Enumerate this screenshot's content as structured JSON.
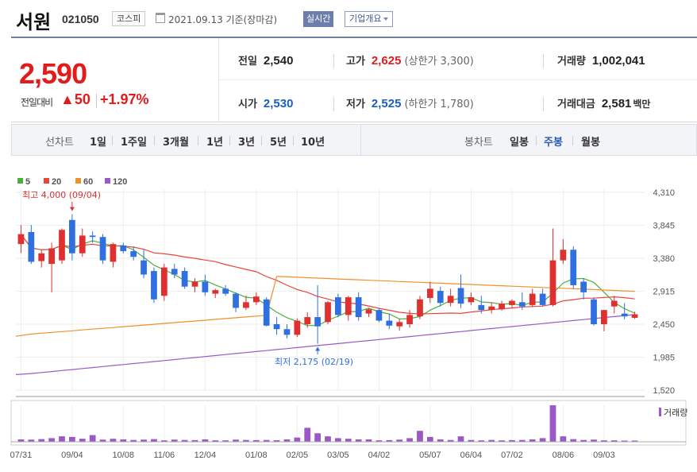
{
  "header": {
    "name": "서원",
    "code": "021050",
    "market": "코스피",
    "date": "2021.09.13 기준(장마감)",
    "realtime": "실시간",
    "company": "기업개요"
  },
  "quote": {
    "price": "2,590",
    "compare_label": "전일대비",
    "compare_value": "▲50",
    "rate": "+1.97%",
    "prev_label": "전일",
    "prev_value": "2,540",
    "high_label": "고가",
    "high_value": "2,625",
    "upper_limit": "(상한가 3,300)",
    "volume_label": "거래량",
    "volume_value": "1,002,041",
    "open_label": "시가",
    "open_value": "2,530",
    "low_label": "저가",
    "low_value": "2,525",
    "lower_limit": "(하한가 1,780)",
    "amount_label": "거래대금",
    "amount_value": "2,581",
    "amount_unit": "백만"
  },
  "period_bar": {
    "line_label": "선차트",
    "line_options": [
      "1일",
      "1주일",
      "3개월",
      "1년",
      "3년",
      "5년",
      "10년"
    ],
    "candle_label": "봉차트",
    "candle_options": [
      "일봉",
      "주봉",
      "월봉"
    ],
    "candle_selected": 1
  },
  "chart_data": {
    "type": "candlestick",
    "legend": [
      {
        "name": "5",
        "color": "#4caf3c"
      },
      {
        "name": "20",
        "color": "#e8453c"
      },
      {
        "name": "60",
        "color": "#f0902a"
      },
      {
        "name": "120",
        "color": "#9b59c8"
      }
    ],
    "colors": {
      "up": "#e02f2f",
      "down": "#2f6fe0",
      "grid": "#eeeeee"
    },
    "y_ticks": [
      "4,310",
      "3,845",
      "3,380",
      "2,915",
      "2,450",
      "1,985",
      "1,520"
    ],
    "y_tick_values": [
      4310,
      3845,
      3380,
      2915,
      2450,
      1985,
      1520
    ],
    "ylim": [
      1520,
      4310
    ],
    "x_tick_labels": [
      "07/31",
      "09/04",
      "10/08",
      "11/06",
      "12/04",
      "01/08",
      "02/05",
      "03/05",
      "04/02",
      "05/07",
      "06/04",
      "07/02",
      "08/06",
      "09/03"
    ],
    "x_tick_index": [
      0,
      5,
      10,
      14,
      18,
      23,
      27,
      31,
      35,
      40,
      44,
      48,
      53,
      57
    ],
    "high_annotation": "최고 4,000 (09/04)",
    "high_index": 5,
    "high_value": 4000,
    "low_annotation": "최저 2,175 (02/19)",
    "low_index": 29,
    "low_value": 2175,
    "volume_label": "거래량",
    "candles": [
      {
        "o": 3580,
        "h": 3850,
        "l": 3450,
        "c": 3720
      },
      {
        "o": 3750,
        "h": 3850,
        "l": 3300,
        "c": 3330
      },
      {
        "o": 3340,
        "h": 3500,
        "l": 3250,
        "c": 3450
      },
      {
        "o": 3300,
        "h": 3600,
        "l": 2900,
        "c": 3520
      },
      {
        "o": 3350,
        "h": 3800,
        "l": 3300,
        "c": 3780
      },
      {
        "o": 3920,
        "h": 4000,
        "l": 3350,
        "c": 3450
      },
      {
        "o": 3450,
        "h": 3800,
        "l": 3400,
        "c": 3700
      },
      {
        "o": 3700,
        "h": 3760,
        "l": 3600,
        "c": 3680
      },
      {
        "o": 3680,
        "h": 3720,
        "l": 3300,
        "c": 3350
      },
      {
        "o": 3330,
        "h": 3600,
        "l": 3250,
        "c": 3580
      },
      {
        "o": 3560,
        "h": 3600,
        "l": 3450,
        "c": 3480
      },
      {
        "o": 3480,
        "h": 3550,
        "l": 3350,
        "c": 3400
      },
      {
        "o": 3350,
        "h": 3500,
        "l": 3100,
        "c": 3150
      },
      {
        "o": 3200,
        "h": 3250,
        "l": 2750,
        "c": 2800
      },
      {
        "o": 2850,
        "h": 3300,
        "l": 2780,
        "c": 3250
      },
      {
        "o": 3230,
        "h": 3300,
        "l": 3100,
        "c": 3150
      },
      {
        "o": 3200,
        "h": 3250,
        "l": 2950,
        "c": 2980
      },
      {
        "o": 2980,
        "h": 3100,
        "l": 2900,
        "c": 3050
      },
      {
        "o": 3050,
        "h": 3150,
        "l": 2850,
        "c": 2900
      },
      {
        "o": 2880,
        "h": 2950,
        "l": 2820,
        "c": 2930
      },
      {
        "o": 2950,
        "h": 3000,
        "l": 2850,
        "c": 2880
      },
      {
        "o": 2880,
        "h": 2900,
        "l": 2620,
        "c": 2680
      },
      {
        "o": 2680,
        "h": 2850,
        "l": 2650,
        "c": 2760
      },
      {
        "o": 2760,
        "h": 2900,
        "l": 2720,
        "c": 2840
      },
      {
        "o": 2800,
        "h": 2830,
        "l": 2420,
        "c": 2430
      },
      {
        "o": 2450,
        "h": 2550,
        "l": 2300,
        "c": 2380
      },
      {
        "o": 2380,
        "h": 2450,
        "l": 2250,
        "c": 2300
      },
      {
        "o": 2300,
        "h": 2530,
        "l": 2270,
        "c": 2500
      },
      {
        "o": 2450,
        "h": 2620,
        "l": 2400,
        "c": 2550
      },
      {
        "o": 2550,
        "h": 3000,
        "l": 2175,
        "c": 2420
      },
      {
        "o": 2480,
        "h": 2780,
        "l": 2450,
        "c": 2760
      },
      {
        "o": 2830,
        "h": 2880,
        "l": 2550,
        "c": 2580
      },
      {
        "o": 2580,
        "h": 2850,
        "l": 2500,
        "c": 2830
      },
      {
        "o": 2830,
        "h": 2900,
        "l": 2500,
        "c": 2550
      },
      {
        "o": 2600,
        "h": 2680,
        "l": 2550,
        "c": 2660
      },
      {
        "o": 2650,
        "h": 2680,
        "l": 2480,
        "c": 2500
      },
      {
        "o": 2500,
        "h": 2600,
        "l": 2380,
        "c": 2430
      },
      {
        "o": 2420,
        "h": 2520,
        "l": 2360,
        "c": 2480
      },
      {
        "o": 2450,
        "h": 2650,
        "l": 2400,
        "c": 2580
      },
      {
        "o": 2560,
        "h": 2850,
        "l": 2520,
        "c": 2800
      },
      {
        "o": 2820,
        "h": 3050,
        "l": 2750,
        "c": 2950
      },
      {
        "o": 2920,
        "h": 2980,
        "l": 2700,
        "c": 2750
      },
      {
        "o": 2750,
        "h": 2950,
        "l": 2700,
        "c": 2850
      },
      {
        "o": 2960,
        "h": 3150,
        "l": 2680,
        "c": 2740
      },
      {
        "o": 2760,
        "h": 2900,
        "l": 2720,
        "c": 2830
      },
      {
        "o": 2720,
        "h": 2850,
        "l": 2600,
        "c": 2650
      },
      {
        "o": 2650,
        "h": 2750,
        "l": 2600,
        "c": 2700
      },
      {
        "o": 2660,
        "h": 2780,
        "l": 2640,
        "c": 2740
      },
      {
        "o": 2720,
        "h": 2800,
        "l": 2680,
        "c": 2780
      },
      {
        "o": 2760,
        "h": 2900,
        "l": 2650,
        "c": 2700
      },
      {
        "o": 2720,
        "h": 2950,
        "l": 2700,
        "c": 2880
      },
      {
        "o": 2880,
        "h": 2950,
        "l": 2700,
        "c": 2720
      },
      {
        "o": 2720,
        "h": 3800,
        "l": 2700,
        "c": 3350
      },
      {
        "o": 3350,
        "h": 3650,
        "l": 3300,
        "c": 3500
      },
      {
        "o": 3500,
        "h": 3550,
        "l": 2950,
        "c": 3000
      },
      {
        "o": 3050,
        "h": 3100,
        "l": 2800,
        "c": 2900
      },
      {
        "o": 2800,
        "h": 2830,
        "l": 2430,
        "c": 2450
      },
      {
        "o": 2450,
        "h": 2650,
        "l": 2350,
        "c": 2650
      },
      {
        "o": 2700,
        "h": 2850,
        "l": 2600,
        "c": 2780
      },
      {
        "o": 2600,
        "h": 2750,
        "l": 2520,
        "c": 2560
      },
      {
        "o": 2540,
        "h": 2625,
        "l": 2525,
        "c": 2590
      }
    ],
    "volumes": [
      20,
      18,
      22,
      30,
      45,
      40,
      25,
      55,
      18,
      25,
      20,
      15,
      18,
      22,
      12,
      18,
      15,
      14,
      20,
      12,
      12,
      18,
      15,
      14,
      15,
      13,
      20,
      35,
      115,
      70,
      45,
      30,
      25,
      20,
      20,
      12,
      14,
      18,
      30,
      90,
      40,
      20,
      15,
      45,
      15,
      12,
      15,
      12,
      14,
      15,
      20,
      30,
      300,
      45,
      22,
      15,
      18,
      12,
      12,
      10,
      10
    ]
  }
}
